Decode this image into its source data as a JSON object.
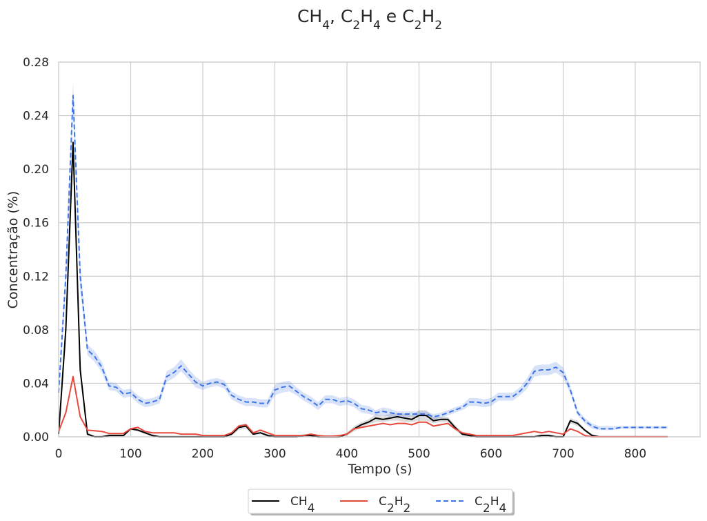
{
  "chart_data": {
    "type": "line",
    "title": {
      "parts": [
        {
          "text": "CH",
          "sub": false
        },
        {
          "text": "4",
          "sub": true
        },
        {
          "text": ", C",
          "sub": false
        },
        {
          "text": "2",
          "sub": true
        },
        {
          "text": "H",
          "sub": false
        },
        {
          "text": "4",
          "sub": true
        },
        {
          "text": " e C",
          "sub": false
        },
        {
          "text": "2",
          "sub": true
        },
        {
          "text": "H",
          "sub": false
        },
        {
          "text": "2",
          "sub": true
        }
      ]
    },
    "xlabel": "Tempo (s)",
    "ylabel": "Concentração (%)",
    "xlim": [
      0,
      890
    ],
    "ylim": [
      0,
      0.28
    ],
    "xticks": [
      "0",
      "100",
      "200",
      "300",
      "400",
      "500",
      "600",
      "700",
      "800"
    ],
    "yticks": [
      "0.00",
      "0.04",
      "0.08",
      "0.12",
      "0.16",
      "0.20",
      "0.24",
      "0.28"
    ],
    "grid": true,
    "legend_position": "bottom-center",
    "x": [
      0,
      10,
      20,
      30,
      40,
      50,
      60,
      70,
      80,
      90,
      100,
      110,
      120,
      130,
      140,
      150,
      160,
      170,
      180,
      190,
      200,
      210,
      220,
      230,
      240,
      250,
      260,
      270,
      280,
      290,
      300,
      310,
      320,
      330,
      340,
      350,
      360,
      370,
      380,
      390,
      400,
      410,
      420,
      430,
      440,
      450,
      460,
      470,
      480,
      490,
      500,
      510,
      520,
      530,
      540,
      550,
      560,
      570,
      580,
      590,
      600,
      610,
      620,
      630,
      640,
      650,
      660,
      670,
      680,
      690,
      700,
      710,
      720,
      730,
      740,
      750,
      760,
      770,
      780,
      790,
      800,
      810,
      820,
      830,
      840,
      845
    ],
    "series": [
      {
        "name_parts": [
          {
            "text": "CH",
            "sub": false
          },
          {
            "text": "4",
            "sub": true
          }
        ],
        "color": "#000000",
        "dash": false,
        "band": true,
        "band_color": "#555555",
        "values": [
          0.002,
          0.08,
          0.22,
          0.05,
          0.002,
          0.0,
          0.0,
          0.001,
          0.001,
          0.001,
          0.006,
          0.005,
          0.003,
          0.001,
          0.0,
          0.0,
          0.0,
          0.0,
          0.0,
          0.0,
          0.0,
          0.0,
          0.0,
          0.0,
          0.002,
          0.007,
          0.008,
          0.002,
          0.003,
          0.001,
          0.0,
          0.0,
          0.0,
          0.0,
          0.001,
          0.001,
          0.0,
          0.0,
          0.0,
          0.0,
          0.002,
          0.006,
          0.009,
          0.011,
          0.014,
          0.013,
          0.014,
          0.015,
          0.014,
          0.013,
          0.016,
          0.016,
          0.012,
          0.013,
          0.013,
          0.007,
          0.002,
          0.001,
          0.0,
          0.0,
          0.0,
          0.0,
          0.0,
          0.0,
          0.0,
          0.0,
          0.0,
          0.001,
          0.001,
          0.0,
          0.0,
          0.012,
          0.01,
          0.005,
          0.001,
          0.0,
          0.0,
          0.0,
          0.0,
          0.0,
          0.0,
          0.0,
          0.0,
          0.0,
          0.0,
          0.0
        ],
        "lower": [
          0.0,
          0.07,
          0.2,
          0.045,
          0.001,
          0.0,
          0.0,
          0.0,
          0.0,
          0.0,
          0.005,
          0.004,
          0.002,
          0.0,
          0.0,
          0.0,
          0.0,
          0.0,
          0.0,
          0.0,
          0.0,
          0.0,
          0.0,
          0.0,
          0.001,
          0.005,
          0.006,
          0.001,
          0.002,
          0.0,
          0.0,
          0.0,
          0.0,
          0.0,
          0.0,
          0.0,
          0.0,
          0.0,
          0.0,
          0.0,
          0.001,
          0.004,
          0.007,
          0.009,
          0.011,
          0.011,
          0.012,
          0.012,
          0.011,
          0.011,
          0.012,
          0.012,
          0.01,
          0.011,
          0.011,
          0.005,
          0.001,
          0.0,
          0.0,
          0.0,
          0.0,
          0.0,
          0.0,
          0.0,
          0.0,
          0.0,
          0.0,
          0.0,
          0.0,
          0.0,
          0.0,
          0.01,
          0.008,
          0.004,
          0.0,
          0.0,
          0.0,
          0.0,
          0.0,
          0.0,
          0.0,
          0.0,
          0.0,
          0.0,
          0.0,
          0.0
        ],
        "upper": [
          0.004,
          0.09,
          0.225,
          0.055,
          0.003,
          0.001,
          0.001,
          0.002,
          0.002,
          0.002,
          0.007,
          0.006,
          0.004,
          0.002,
          0.001,
          0.001,
          0.001,
          0.001,
          0.001,
          0.001,
          0.001,
          0.001,
          0.001,
          0.001,
          0.003,
          0.009,
          0.01,
          0.003,
          0.004,
          0.002,
          0.001,
          0.001,
          0.001,
          0.001,
          0.002,
          0.002,
          0.001,
          0.001,
          0.001,
          0.001,
          0.003,
          0.008,
          0.011,
          0.013,
          0.017,
          0.016,
          0.017,
          0.018,
          0.017,
          0.016,
          0.02,
          0.02,
          0.015,
          0.015,
          0.015,
          0.009,
          0.003,
          0.002,
          0.001,
          0.001,
          0.001,
          0.001,
          0.001,
          0.001,
          0.001,
          0.001,
          0.001,
          0.002,
          0.002,
          0.001,
          0.001,
          0.014,
          0.012,
          0.006,
          0.002,
          0.001,
          0.001,
          0.001,
          0.001,
          0.001,
          0.001,
          0.001,
          0.001,
          0.001,
          0.001,
          0.001
        ]
      },
      {
        "name_parts": [
          {
            "text": "C",
            "sub": false
          },
          {
            "text": "2",
            "sub": true
          },
          {
            "text": "H",
            "sub": false
          },
          {
            "text": "2",
            "sub": true
          }
        ],
        "color": "#e8473c",
        "dash": false,
        "band": false,
        "band_color": "#e8473c",
        "values": [
          0.004,
          0.018,
          0.045,
          0.015,
          0.005,
          0.0045,
          0.004,
          0.0025,
          0.0025,
          0.0025,
          0.006,
          0.007,
          0.004,
          0.003,
          0.003,
          0.003,
          0.003,
          0.002,
          0.002,
          0.002,
          0.001,
          0.001,
          0.001,
          0.001,
          0.003,
          0.008,
          0.009,
          0.003,
          0.005,
          0.003,
          0.001,
          0.001,
          0.001,
          0.001,
          0.001,
          0.002,
          0.001,
          0.0005,
          0.0005,
          0.001,
          0.002,
          0.006,
          0.007,
          0.008,
          0.009,
          0.01,
          0.009,
          0.01,
          0.01,
          0.009,
          0.011,
          0.011,
          0.008,
          0.009,
          0.01,
          0.006,
          0.003,
          0.002,
          0.001,
          0.001,
          0.001,
          0.001,
          0.001,
          0.001,
          0.002,
          0.003,
          0.004,
          0.003,
          0.004,
          0.003,
          0.002,
          0.006,
          0.004,
          0.001,
          0.0,
          0.0,
          0.0,
          0.0,
          0.0,
          0.0,
          0.0,
          0.0,
          0.0,
          0.0,
          0.0,
          0.0
        ]
      },
      {
        "name_parts": [
          {
            "text": "C",
            "sub": false
          },
          {
            "text": "2",
            "sub": true
          },
          {
            "text": "H",
            "sub": false
          },
          {
            "text": "4",
            "sub": true
          }
        ],
        "color": "#3d74e8",
        "dash": true,
        "band": true,
        "band_color": "#3d74e8",
        "values": [
          0.033,
          0.12,
          0.255,
          0.12,
          0.065,
          0.06,
          0.052,
          0.038,
          0.037,
          0.032,
          0.033,
          0.028,
          0.025,
          0.026,
          0.028,
          0.045,
          0.048,
          0.053,
          0.047,
          0.041,
          0.038,
          0.04,
          0.041,
          0.039,
          0.031,
          0.028,
          0.026,
          0.026,
          0.025,
          0.025,
          0.035,
          0.037,
          0.038,
          0.034,
          0.03,
          0.027,
          0.023,
          0.028,
          0.028,
          0.026,
          0.027,
          0.025,
          0.021,
          0.02,
          0.018,
          0.019,
          0.018,
          0.017,
          0.017,
          0.017,
          0.017,
          0.017,
          0.015,
          0.016,
          0.018,
          0.02,
          0.022,
          0.026,
          0.026,
          0.025,
          0.026,
          0.03,
          0.03,
          0.03,
          0.034,
          0.04,
          0.049,
          0.05,
          0.05,
          0.052,
          0.048,
          0.035,
          0.018,
          0.012,
          0.008,
          0.006,
          0.006,
          0.006,
          0.007,
          0.007,
          0.007,
          0.007,
          0.007,
          0.007,
          0.007,
          0.007
        ],
        "lower": [
          0.03,
          0.11,
          0.245,
          0.11,
          0.061,
          0.056,
          0.048,
          0.035,
          0.034,
          0.029,
          0.03,
          0.025,
          0.022,
          0.023,
          0.025,
          0.041,
          0.044,
          0.049,
          0.043,
          0.037,
          0.035,
          0.037,
          0.038,
          0.036,
          0.028,
          0.025,
          0.023,
          0.023,
          0.022,
          0.022,
          0.031,
          0.033,
          0.034,
          0.031,
          0.027,
          0.024,
          0.02,
          0.025,
          0.025,
          0.023,
          0.024,
          0.022,
          0.018,
          0.017,
          0.016,
          0.016,
          0.015,
          0.015,
          0.015,
          0.015,
          0.015,
          0.015,
          0.013,
          0.014,
          0.016,
          0.018,
          0.02,
          0.023,
          0.023,
          0.022,
          0.023,
          0.027,
          0.027,
          0.027,
          0.031,
          0.036,
          0.045,
          0.046,
          0.046,
          0.048,
          0.044,
          0.032,
          0.016,
          0.01,
          0.006,
          0.005,
          0.005,
          0.005,
          0.006,
          0.006,
          0.006,
          0.006,
          0.006,
          0.006,
          0.006,
          0.006
        ],
        "upper": [
          0.036,
          0.13,
          0.265,
          0.13,
          0.069,
          0.064,
          0.056,
          0.041,
          0.04,
          0.035,
          0.036,
          0.031,
          0.028,
          0.029,
          0.031,
          0.049,
          0.052,
          0.058,
          0.051,
          0.045,
          0.041,
          0.043,
          0.044,
          0.042,
          0.034,
          0.031,
          0.029,
          0.029,
          0.028,
          0.028,
          0.039,
          0.041,
          0.042,
          0.037,
          0.033,
          0.03,
          0.026,
          0.031,
          0.031,
          0.029,
          0.03,
          0.028,
          0.024,
          0.023,
          0.02,
          0.022,
          0.021,
          0.019,
          0.019,
          0.019,
          0.019,
          0.019,
          0.017,
          0.018,
          0.02,
          0.022,
          0.024,
          0.029,
          0.029,
          0.028,
          0.029,
          0.033,
          0.033,
          0.033,
          0.037,
          0.044,
          0.053,
          0.054,
          0.054,
          0.056,
          0.052,
          0.038,
          0.02,
          0.014,
          0.01,
          0.008,
          0.008,
          0.008,
          0.008,
          0.008,
          0.008,
          0.008,
          0.008,
          0.008,
          0.008,
          0.008
        ]
      }
    ]
  }
}
